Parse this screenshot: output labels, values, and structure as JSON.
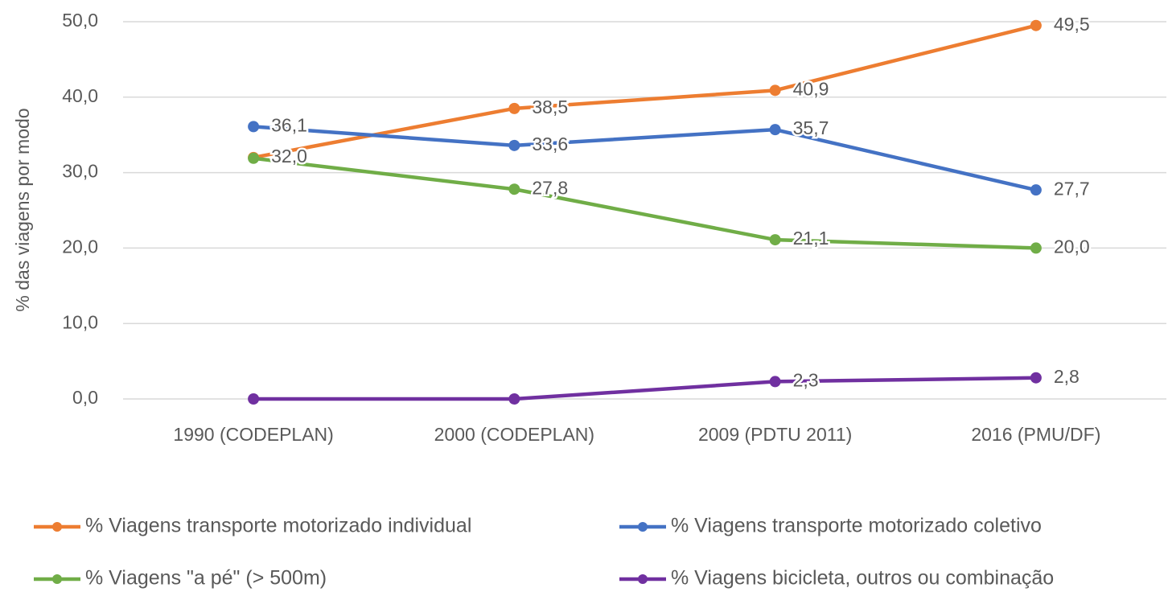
{
  "chart_data": {
    "type": "line",
    "y_label": "% das viagens por modo",
    "categories": [
      "1990 (CODEPLAN)",
      "2000 (CODEPLAN)",
      "2009 (PDTU 2011)",
      "2016 (PMU/DF)"
    ],
    "series": [
      {
        "name": "% Viagens transporte motorizado individual",
        "color": "#ed7d31",
        "values": [
          32.0,
          38.5,
          40.9,
          49.5
        ],
        "value_labels": [
          "32,0",
          "38,5",
          "40,9",
          "49,5"
        ]
      },
      {
        "name": "% Viagens transporte motorizado coletivo",
        "color": "#4472c4",
        "values": [
          36.1,
          33.6,
          35.7,
          27.7
        ],
        "value_labels": [
          "36,1",
          "33,6",
          "35,7",
          "27,7"
        ]
      },
      {
        "name": "% Viagens \"a pé\" (> 500m)",
        "color": "#70ad47",
        "values": [
          31.9,
          27.8,
          21.1,
          20.0
        ],
        "value_labels": [
          null,
          "27,8",
          "21,1",
          "20,0"
        ]
      },
      {
        "name": "% Viagens bicicleta, outros ou combinação",
        "color": "#7030a0",
        "values": [
          0.0,
          0.0,
          2.3,
          2.8
        ],
        "value_labels": [
          null,
          null,
          "2,3",
          "2,8"
        ]
      }
    ],
    "ylim": [
      0,
      50
    ],
    "yticks": [
      {
        "value": 0,
        "label": "0,0"
      },
      {
        "value": 10,
        "label": "10,0"
      },
      {
        "value": 20,
        "label": "20,0"
      },
      {
        "value": 30,
        "label": "30,0"
      },
      {
        "value": 40,
        "label": "40,0"
      },
      {
        "value": 50,
        "label": "50,0"
      }
    ],
    "grid": true,
    "legend": "bottom"
  }
}
